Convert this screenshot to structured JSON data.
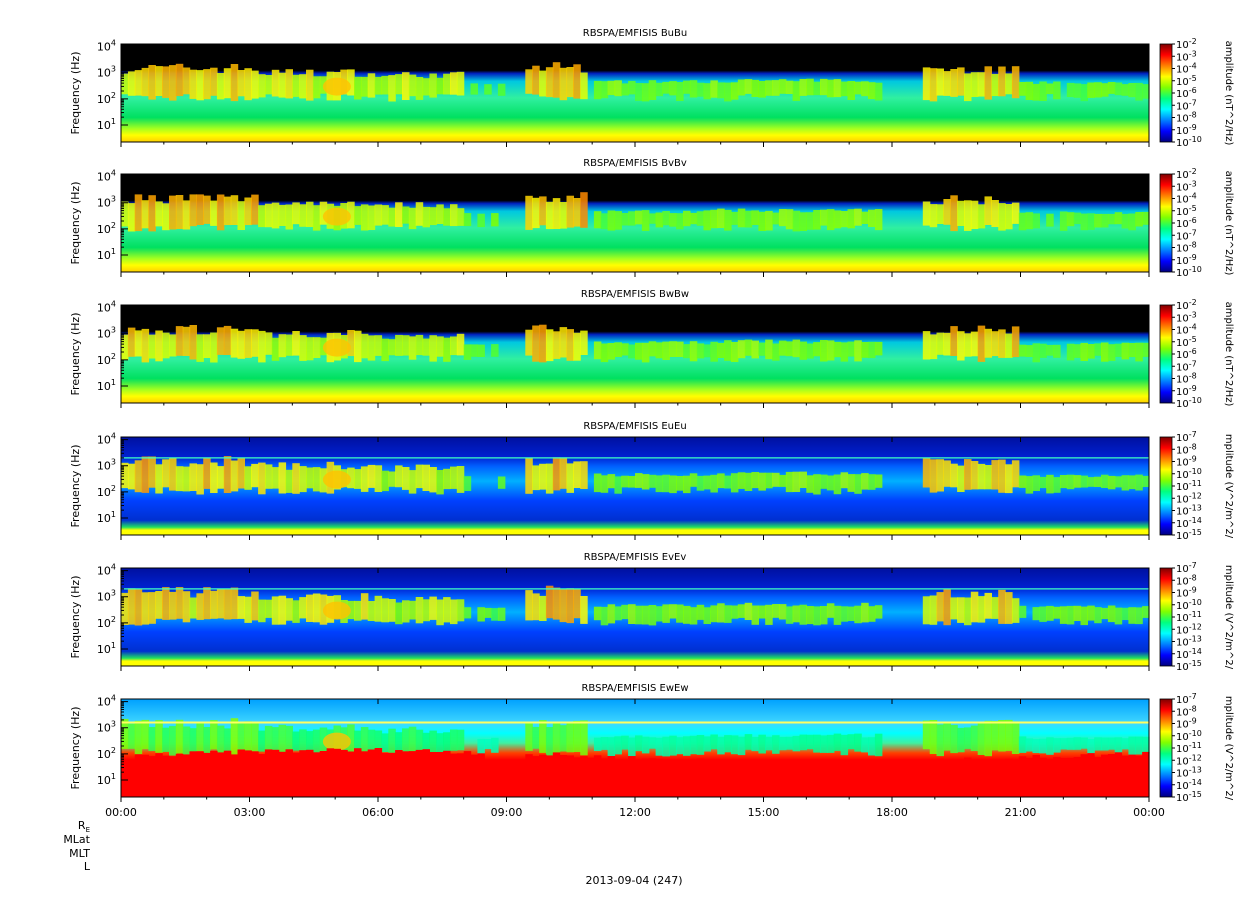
{
  "chart_data": [
    {
      "type": "heatmap",
      "title": "RBSPA/EMFISIS  BuBu",
      "ylabel": "Frequency (Hz)",
      "y_scale": "log",
      "y_ticks": [
        "10^1",
        "10^2",
        "10^3",
        "10^4"
      ],
      "colorbar_label": "amplitude (nT^2/Hz)",
      "colorbar_ticks": [
        "10^-2",
        "10^-3",
        "10^-4",
        "10^-5",
        "10^-6",
        "10^-7",
        "10^-8",
        "10^-9",
        "10^-10"
      ],
      "colorbar_range": [
        -10,
        -2
      ]
    },
    {
      "type": "heatmap",
      "title": "RBSPA/EMFISIS  BvBv",
      "ylabel": "Frequency (Hz)",
      "y_scale": "log",
      "y_ticks": [
        "10^1",
        "10^2",
        "10^3",
        "10^4"
      ],
      "colorbar_label": "amplitude (nT^2/Hz)",
      "colorbar_ticks": [
        "10^-2",
        "10^-3",
        "10^-4",
        "10^-5",
        "10^-6",
        "10^-7",
        "10^-8",
        "10^-9",
        "10^-10"
      ],
      "colorbar_range": [
        -10,
        -2
      ]
    },
    {
      "type": "heatmap",
      "title": "RBSPA/EMFISIS  BwBw",
      "ylabel": "Frequency (Hz)",
      "y_scale": "log",
      "y_ticks": [
        "10^1",
        "10^2",
        "10^3",
        "10^4"
      ],
      "colorbar_label": "amplitude (nT^2/Hz)",
      "colorbar_ticks": [
        "10^-2",
        "10^-3",
        "10^-4",
        "10^-5",
        "10^-6",
        "10^-7",
        "10^-8",
        "10^-9",
        "10^-10"
      ],
      "colorbar_range": [
        -10,
        -2
      ]
    },
    {
      "type": "heatmap",
      "title": "RBSPA/EMFISIS  EuEu",
      "ylabel": "Frequency (Hz)",
      "y_scale": "log",
      "y_ticks": [
        "10^1",
        "10^2",
        "10^3",
        "10^4"
      ],
      "colorbar_label": "mplitude (V^2/m^2/",
      "colorbar_ticks": [
        "10^-7",
        "10^-8",
        "10^-9",
        "10^-10",
        "10^-11",
        "10^-12",
        "10^-13",
        "10^-14",
        "10^-15"
      ],
      "colorbar_range": [
        -15,
        -7
      ]
    },
    {
      "type": "heatmap",
      "title": "RBSPA/EMFISIS  EvEv",
      "ylabel": "Frequency (Hz)",
      "y_scale": "log",
      "y_ticks": [
        "10^1",
        "10^2",
        "10^3",
        "10^4"
      ],
      "colorbar_label": "mplitude (V^2/m^2/",
      "colorbar_ticks": [
        "10^-7",
        "10^-8",
        "10^-9",
        "10^-10",
        "10^-11",
        "10^-12",
        "10^-13",
        "10^-14",
        "10^-15"
      ],
      "colorbar_range": [
        -15,
        -7
      ]
    },
    {
      "type": "heatmap",
      "title": "RBSPA/EMFISIS  EwEw",
      "ylabel": "Frequency (Hz)",
      "y_scale": "log",
      "y_ticks": [
        "10^1",
        "10^2",
        "10^3",
        "10^4"
      ],
      "colorbar_label": "mplitude (V^2/m^2/",
      "colorbar_ticks": [
        "10^-7",
        "10^-8",
        "10^-9",
        "10^-10",
        "10^-11",
        "10^-12",
        "10^-13",
        "10^-14",
        "10^-15"
      ],
      "colorbar_range": [
        -15,
        -7
      ]
    }
  ],
  "x_axis": {
    "tick_labels": [
      "00:00",
      "03:00",
      "06:00",
      "09:00",
      "12:00",
      "15:00",
      "18:00",
      "21:00",
      "00:00"
    ],
    "range_hours": [
      0,
      24
    ]
  },
  "ephemeris_labels": [
    "RE",
    "MLat",
    "MLT",
    "L"
  ],
  "date_label": "2013-09-04 (247)",
  "colors": {
    "background": "#ffffff",
    "no_signal": "#000000",
    "colormap": [
      "#00007f",
      "#0000ff",
      "#0080ff",
      "#00ffff",
      "#00ff80",
      "#80ff00",
      "#ffff00",
      "#ff8000",
      "#ff0000",
      "#7f0000"
    ]
  }
}
